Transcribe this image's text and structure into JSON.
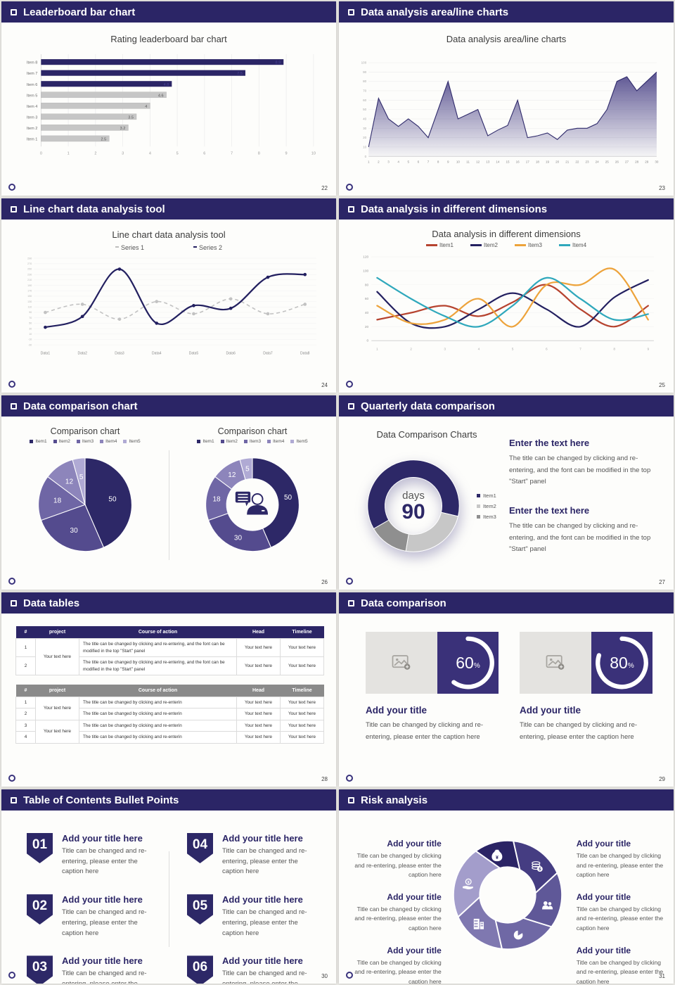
{
  "page_background": "#e9e8e4",
  "accent": "#2b2566",
  "slides": {
    "s22": {
      "header": "Leaderboard bar chart",
      "page": "22",
      "chart": {
        "type": "bar",
        "title": "Rating leaderboard bar chart",
        "categories": [
          "Item 1",
          "Item 2",
          "Item 3",
          "Item 4",
          "Item 5",
          "Item 6",
          "Item 7",
          "Item 8"
        ],
        "values": [
          2.5,
          3.2,
          3.5,
          4,
          4.6,
          4.8,
          7.5,
          8.9
        ],
        "xlim": [
          0,
          10
        ],
        "dark_from": 5,
        "bar_dark": "#2b2566",
        "bar_gray": "#c6c6c6"
      }
    },
    "s23": {
      "header": "Data analysis area/line charts",
      "page": "23",
      "chart": {
        "type": "area",
        "title": "Data analysis area/line charts",
        "ylim": [
          0,
          100
        ],
        "x_labels": [
          "1",
          "2",
          "3",
          "4",
          "5",
          "6",
          "7",
          "8",
          "9",
          "10",
          "11",
          "12",
          "13",
          "14",
          "15",
          "16",
          "17",
          "18",
          "19",
          "20",
          "21",
          "22",
          "23",
          "24",
          "25",
          "26",
          "27",
          "28",
          "29",
          "30"
        ],
        "values": [
          10,
          62,
          40,
          32,
          40,
          32,
          20,
          50,
          80,
          40,
          45,
          50,
          22,
          28,
          33,
          60,
          20,
          22,
          25,
          18,
          28,
          30,
          30,
          35,
          50,
          80,
          85,
          70,
          80,
          90
        ],
        "line_color": "#2f2a6b",
        "fill_color": "#4c4488"
      }
    },
    "s24": {
      "header": "Line chart data analysis tool",
      "page": "24",
      "chart": {
        "type": "line",
        "title": "Line chart data analysis tool",
        "ylim": [
          -30,
          290
        ],
        "ystep": 20,
        "categories": [
          "Data1",
          "Data2",
          "Data3",
          "Data4",
          "Data5",
          "Data6",
          "Data7",
          "Data8"
        ],
        "series": [
          {
            "name": "Series 1",
            "color": "#c2c2c2",
            "dash": "5,4",
            "values": [
              90,
              120,
              65,
              130,
              85,
              140,
              85,
              120
            ]
          },
          {
            "name": "Series 2",
            "color": "#232060",
            "values": [
              35,
              75,
              250,
              50,
              115,
              105,
              220,
              230
            ]
          }
        ]
      }
    },
    "s25": {
      "header": "Data analysis in different dimensions",
      "page": "25",
      "chart": {
        "type": "line",
        "title": "Data analysis in different dimensions",
        "ylim": [
          0,
          120
        ],
        "ystep": 20,
        "x_labels": [
          "1",
          "2",
          "3",
          "4",
          "5",
          "6",
          "7",
          "8",
          "9"
        ],
        "series": [
          {
            "name": "Item1",
            "color": "#b6432f",
            "values": [
              30,
              40,
              50,
              35,
              55,
              80,
              45,
              20,
              50
            ]
          },
          {
            "name": "Item2",
            "color": "#232060",
            "values": [
              70,
              25,
              20,
              45,
              68,
              45,
              20,
              62,
              87
            ]
          },
          {
            "name": "Item3",
            "color": "#eda33b",
            "values": [
              50,
              25,
              30,
              60,
              20,
              80,
              80,
              102,
              30
            ]
          },
          {
            "name": "Item4",
            "color": "#2fa8bc",
            "values": [
              90,
              60,
              35,
              20,
              50,
              90,
              60,
              30,
              38
            ]
          }
        ]
      }
    },
    "s26": {
      "header": "Data comparison chart",
      "page": "26",
      "left_title": "Comparison chart",
      "right_title": "Comparison chart",
      "chart": {
        "type": "pie",
        "labels": [
          "Item1",
          "Item2",
          "Item3",
          "Item4",
          "Item5"
        ],
        "values": [
          50,
          30,
          18,
          12,
          5
        ],
        "colors": [
          "#2d2867",
          "#544b8e",
          "#6f66a5",
          "#8d85bb",
          "#b0aad4"
        ]
      }
    },
    "s27": {
      "header": "Quarterly data comparison",
      "page": "27",
      "chart": {
        "type": "donut",
        "title": "Data Comparison Charts",
        "values": [
          62,
          24,
          14
        ],
        "start": 240,
        "colors": [
          "#2d2867",
          "#c7c7c7",
          "#8f8f8f"
        ],
        "labels": [
          "Item1",
          "Item2",
          "Item3"
        ],
        "center_label": "days",
        "center_value": "90"
      },
      "blocks": [
        {
          "heading": "Enter the text here",
          "body": "The title can be changed by clicking and re-entering, and the font can be modified in the top \"Start\" panel"
        },
        {
          "heading": "Enter the text here",
          "body": "The title can be changed by clicking and re-entering, and the font can be modified in the top \"Start\" panel"
        }
      ]
    },
    "s28": {
      "header": "Data tables",
      "page": "28",
      "t1": {
        "headers": [
          "#",
          "project",
          "Course of action",
          "Head",
          "Timeline"
        ],
        "project": "Your text here",
        "rows": [
          {
            "num": "1",
            "course": "The title can be changed by clicking and re-entering, and the font can be modified in the top \"Start\" panel",
            "head": "Your text here",
            "timeline": "Your text here"
          },
          {
            "num": "2",
            "course": "The title can be changed by clicking and re-entering, and the font can be modified in the top \"Start\" panel",
            "head": "Your text here",
            "timeline": "Your text here"
          }
        ]
      },
      "t2": {
        "headers": [
          "#",
          "project",
          "Course of action",
          "Head",
          "Timeline"
        ],
        "projects": [
          "Your text here",
          "Your text here"
        ],
        "rows": [
          {
            "num": "1",
            "course": "The title can be changed by clicking and re-enterin",
            "head": "Your text here",
            "timeline": "Your text here"
          },
          {
            "num": "2",
            "course": "The title can be changed by clicking and re-enterin",
            "head": "Your text here",
            "timeline": "Your text here"
          },
          {
            "num": "3",
            "course": "The title can be changed by clicking and re-enterin",
            "head": "Your text here",
            "timeline": "Your text here"
          },
          {
            "num": "4",
            "course": "The title can be changed by clicking and re-enterin",
            "head": "Your text here",
            "timeline": "Your text here"
          }
        ]
      }
    },
    "s29": {
      "header": "Data comparison",
      "page": "29",
      "unit": "%",
      "card_title": "Add your title",
      "card_caption": "Title can be changed by clicking and re-entering, please enter the caption here",
      "cards": [
        {
          "pct": 60
        },
        {
          "pct": 80
        }
      ],
      "square_color": "#3a3179"
    },
    "s30": {
      "header": "Table of Contents Bullet Points",
      "page": "30",
      "item_title": "Add your title here",
      "item_caption": "Title can be changed and re-entering, please enter the caption here",
      "items": [
        {
          "num": "01"
        },
        {
          "num": "02"
        },
        {
          "num": "03"
        },
        {
          "num": "04"
        },
        {
          "num": "05"
        },
        {
          "num": "06"
        }
      ]
    },
    "s31": {
      "header": "Risk analysis",
      "page": "31",
      "block_title": "Add your title",
      "block_caption": "Title can be changed by clicking and re-entering, please enter the caption here",
      "chart": {
        "type": "pinwheel",
        "blades": [
          {
            "icon": "money-bag",
            "color": "#2b2465"
          },
          {
            "icon": "coins",
            "color": "#453d82"
          },
          {
            "icon": "people",
            "color": "#5f5898"
          },
          {
            "icon": "pie-chart",
            "color": "#6f68a5"
          },
          {
            "icon": "building",
            "color": "#7f78b0"
          },
          {
            "icon": "hand-coin",
            "color": "#a39dcb"
          }
        ]
      }
    }
  }
}
